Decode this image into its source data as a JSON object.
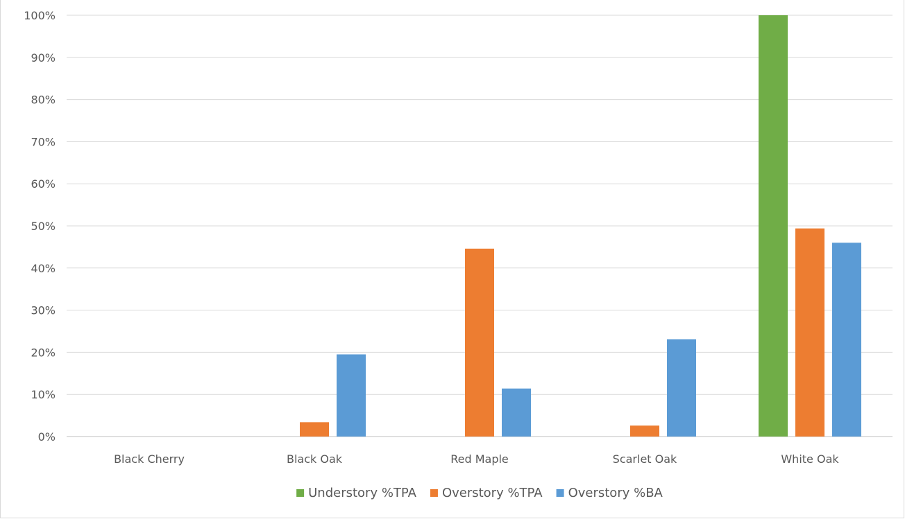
{
  "chart_data": {
    "type": "bar",
    "title": "",
    "xlabel": "",
    "ylabel": "",
    "categories": [
      "Black Cherry",
      "Black Oak",
      "Red Maple",
      "Scarlet Oak",
      "White Oak"
    ],
    "series": [
      {
        "name": "Understory %TPA",
        "color": "#70ad47",
        "values": [
          0,
          0,
          0,
          0,
          100
        ]
      },
      {
        "name": "Overstory %TPA",
        "color": "#ed7d31",
        "values": [
          0,
          3.4,
          44.6,
          2.6,
          49.4
        ]
      },
      {
        "name": "Overstory %BA",
        "color": "#5b9bd5",
        "values": [
          0,
          19.5,
          11.4,
          23.1,
          46
        ]
      }
    ],
    "ylim": [
      0,
      100
    ],
    "yticks": [
      "0%",
      "10%",
      "20%",
      "30%",
      "40%",
      "50%",
      "60%",
      "70%",
      "80%",
      "90%",
      "100%"
    ],
    "grid": true,
    "legend_position": "bottom"
  }
}
